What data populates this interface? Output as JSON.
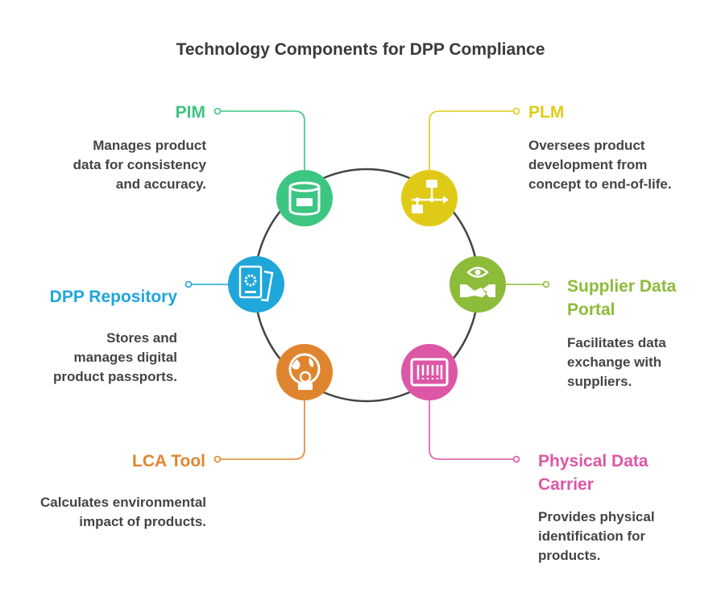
{
  "title": "Technology Components for DPP Compliance",
  "components": [
    {
      "name": "PIM",
      "description": "Manages product data for consistency and accuracy.",
      "color": "#3dc582",
      "icon": "database-icon"
    },
    {
      "name": "PLM",
      "description": "Oversees product development from concept to end-of-life.",
      "color": "#dfcb17",
      "icon": "flowchart-icon"
    },
    {
      "name": "DPP Repository",
      "description": "Stores and manages digital product passports.",
      "color": "#1fa6da",
      "icon": "document-gear-icon"
    },
    {
      "name": "Supplier Data Portal",
      "description": "Facilitates data exchange with suppliers.",
      "color": "#8dbb3a",
      "icon": "handshake-eye-icon"
    },
    {
      "name": "LCA Tool",
      "description": "Calculates environmental impact of products.",
      "color": "#e0852f",
      "icon": "globe-person-icon"
    },
    {
      "name": "Physical Data Carrier",
      "description": "Provides physical identification for products.",
      "color": "#dc57a6",
      "icon": "barcode-icon"
    }
  ]
}
